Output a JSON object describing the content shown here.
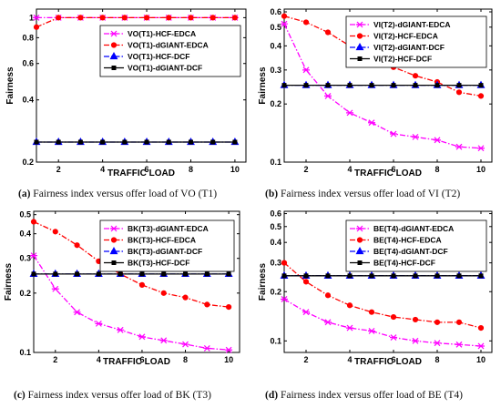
{
  "chart_data": [
    {
      "type": "line",
      "panel_label": "(a)",
      "caption": "Fairness index versus offer load of VO (T1)",
      "xlabel": "TRAFFIC LOAD",
      "ylabel": "Fairness",
      "x": [
        1,
        2,
        3,
        4,
        5,
        6,
        7,
        8,
        9,
        10
      ],
      "xlim": [
        1,
        10.5
      ],
      "xticks": [
        2,
        4,
        6,
        8,
        10
      ],
      "ylim": [
        0.2,
        1.1
      ],
      "yscale": "log",
      "yticks": [
        0.2,
        0.4,
        0.6,
        0.8,
        1
      ],
      "legend_position": "top-right",
      "series": [
        {
          "name": "VO(T1)-HCF-EDCA",
          "color": "#ff00ff",
          "marker": "x",
          "dash": "dashdot",
          "values": [
            1,
            1,
            1,
            1,
            1,
            1,
            1,
            1,
            1,
            1
          ]
        },
        {
          "name": "VO(T1)-dGIANT-EDCA",
          "color": "#ff0000",
          "marker": "o",
          "dash": "dashdot",
          "values": [
            0.9,
            1,
            1,
            1,
            1,
            1,
            1,
            1,
            1,
            1
          ]
        },
        {
          "name": "VO(T1)-HCF-DCF",
          "color": "#0000ff",
          "marker": "triangle",
          "dash": "dashdot",
          "values": [
            0.25,
            0.25,
            0.25,
            0.25,
            0.25,
            0.25,
            0.25,
            0.25,
            0.25,
            0.25
          ]
        },
        {
          "name": "VO(T1)-dGIANT-DCF",
          "color": "#000000",
          "marker": "square",
          "dash": "solid",
          "values": [
            0.25,
            0.25,
            0.25,
            0.25,
            0.25,
            0.25,
            0.25,
            0.25,
            0.25,
            0.25
          ]
        }
      ]
    },
    {
      "type": "line",
      "panel_label": "(b)",
      "caption": "Fairness index versus offer load of VI (T2)",
      "xlabel": "TRAFFIC LOAD",
      "ylabel": "Fairness",
      "x": [
        1,
        2,
        3,
        4,
        5,
        6,
        7,
        8,
        9,
        10
      ],
      "xlim": [
        1,
        10.5
      ],
      "xticks": [
        2,
        4,
        6,
        8,
        10
      ],
      "ylim": [
        0.1,
        0.62
      ],
      "yscale": "log",
      "yticks": [
        0.1,
        0.2,
        0.3,
        0.4,
        0.5,
        0.6
      ],
      "legend_position": "top-right",
      "series": [
        {
          "name": "VI(T2)-dGIANT-EDCA",
          "color": "#ff00ff",
          "marker": "x",
          "dash": "dashdot",
          "values": [
            0.52,
            0.3,
            0.22,
            0.18,
            0.16,
            0.14,
            0.135,
            0.13,
            0.12,
            0.118
          ]
        },
        {
          "name": "VI(T2)-HCF-EDCA",
          "color": "#ff0000",
          "marker": "o",
          "dash": "dashdot",
          "values": [
            0.57,
            0.53,
            0.47,
            0.4,
            0.35,
            0.31,
            0.28,
            0.26,
            0.23,
            0.22
          ]
        },
        {
          "name": "VI(T2)-dGIANT-DCF",
          "color": "#0000ff",
          "marker": "triangle",
          "dash": "dashdot",
          "values": [
            0.25,
            0.25,
            0.25,
            0.25,
            0.25,
            0.25,
            0.25,
            0.25,
            0.25,
            0.25
          ]
        },
        {
          "name": "VI(T2)-HCF-DCF",
          "color": "#000000",
          "marker": "square",
          "dash": "solid",
          "values": [
            0.25,
            0.25,
            0.25,
            0.25,
            0.25,
            0.25,
            0.25,
            0.25,
            0.25,
            0.25
          ]
        }
      ]
    },
    {
      "type": "line",
      "panel_label": "(c)",
      "caption": "Fairness index versus offer load of BK (T3)",
      "xlabel": "TRAFFIC LOAD",
      "ylabel": "Fairness",
      "x": [
        1,
        2,
        3,
        4,
        5,
        6,
        7,
        8,
        9,
        10
      ],
      "xlim": [
        1,
        10.5
      ],
      "xticks": [
        2,
        4,
        6,
        8,
        10
      ],
      "ylim": [
        0.1,
        0.52
      ],
      "yscale": "log",
      "yticks": [
        0.1,
        0.2,
        0.3,
        0.4,
        0.5
      ],
      "legend_position": "top-right",
      "series": [
        {
          "name": "BK(T3)-dGIANT-EDCA",
          "color": "#ff00ff",
          "marker": "x",
          "dash": "dashdot",
          "values": [
            0.31,
            0.21,
            0.16,
            0.14,
            0.13,
            0.12,
            0.115,
            0.11,
            0.105,
            0.103
          ]
        },
        {
          "name": "BK(T3)-HCF-EDCA",
          "color": "#ff0000",
          "marker": "o",
          "dash": "dashdot",
          "values": [
            0.46,
            0.41,
            0.35,
            0.29,
            0.25,
            0.22,
            0.2,
            0.19,
            0.175,
            0.17
          ]
        },
        {
          "name": "BK(T3)-dGIANT-DCF",
          "color": "#0000ff",
          "marker": "triangle",
          "dash": "dashdot",
          "values": [
            0.25,
            0.25,
            0.25,
            0.25,
            0.25,
            0.25,
            0.25,
            0.25,
            0.25,
            0.25
          ]
        },
        {
          "name": "BK(T3)-HCF-DCF",
          "color": "#000000",
          "marker": "square",
          "dash": "solid",
          "values": [
            0.25,
            0.25,
            0.25,
            0.25,
            0.25,
            0.25,
            0.25,
            0.25,
            0.25,
            0.25
          ]
        }
      ]
    },
    {
      "type": "line",
      "panel_label": "(d)",
      "caption": "Fairness index versus offer load of BE (T4)",
      "xlabel": "TRAFFIC LOAD",
      "ylabel": "Fairness",
      "x": [
        1,
        2,
        3,
        4,
        5,
        6,
        7,
        8,
        9,
        10
      ],
      "xlim": [
        1,
        10.5
      ],
      "xticks": [
        2,
        4,
        6,
        8,
        10
      ],
      "ylim": [
        0.085,
        0.62
      ],
      "yscale": "log",
      "yticks": [
        0.1,
        0.2,
        0.3,
        0.4,
        0.5,
        0.6
      ],
      "legend_position": "top-right",
      "series": [
        {
          "name": "BE(T4)-dGIANT-EDCA",
          "color": "#ff00ff",
          "marker": "x",
          "dash": "dashdot",
          "values": [
            0.18,
            0.15,
            0.13,
            0.12,
            0.115,
            0.105,
            0.1,
            0.097,
            0.095,
            0.093
          ]
        },
        {
          "name": "BE(T4)-HCF-EDCA",
          "color": "#ff0000",
          "marker": "o",
          "dash": "dashdot",
          "values": [
            0.3,
            0.23,
            0.19,
            0.165,
            0.15,
            0.14,
            0.135,
            0.13,
            0.13,
            0.12
          ]
        },
        {
          "name": "BE(T4)-dGIANT-DCF",
          "color": "#0000ff",
          "marker": "triangle",
          "dash": "dashdot",
          "values": [
            0.25,
            0.25,
            0.25,
            0.25,
            0.25,
            0.25,
            0.25,
            0.25,
            0.25,
            0.25
          ]
        },
        {
          "name": "BE(T4)-HCF-DCF",
          "color": "#000000",
          "marker": "square",
          "dash": "solid",
          "values": [
            0.25,
            0.25,
            0.25,
            0.25,
            0.25,
            0.25,
            0.25,
            0.25,
            0.25,
            0.25
          ]
        }
      ]
    }
  ]
}
